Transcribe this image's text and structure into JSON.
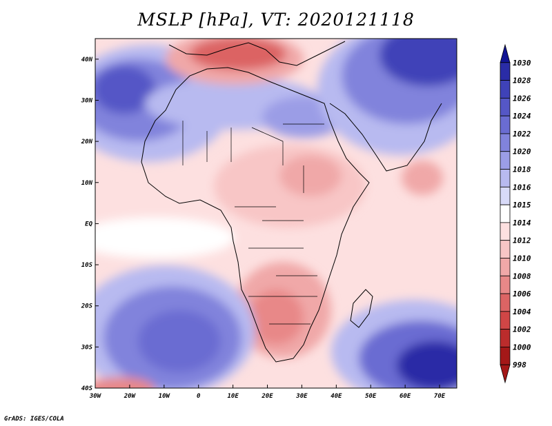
{
  "title": "MSLP [hPa], VT: 2020121118",
  "footer": "GrADS: IGES/COLA",
  "axes": {
    "lon_labels": [
      "30W",
      "20W",
      "10W",
      "0",
      "10E",
      "20E",
      "30E",
      "40E",
      "50E",
      "60E",
      "70E"
    ],
    "lat_labels": [
      "40N",
      "30N",
      "20N",
      "10N",
      "EQ",
      "10S",
      "20S",
      "30S",
      "40S"
    ],
    "lon_range": [
      -30,
      75
    ],
    "lat_range": [
      -40,
      45
    ]
  },
  "colorbar": {
    "levels": [
      "1030",
      "1028",
      "1026",
      "1024",
      "1022",
      "1020",
      "1018",
      "1016",
      "1015",
      "1014",
      "1012",
      "1010",
      "1008",
      "1006",
      "1004",
      "1002",
      "1000",
      "998"
    ],
    "colors": [
      "#121494",
      "#2a2ca6",
      "#3f42b8",
      "#5557c6",
      "#6a6cd2",
      "#8183dc",
      "#9b9de6",
      "#b8baf0",
      "#d8daf8",
      "#ffffff",
      "#fde0e0",
      "#f8c6c6",
      "#f0a8a8",
      "#e88888",
      "#dc6464",
      "#d04646",
      "#bb2c2c",
      "#a41818"
    ]
  },
  "map": {
    "region": "Africa",
    "field": "Mean sea level pressure",
    "background_level_color": "#fde0e0"
  }
}
